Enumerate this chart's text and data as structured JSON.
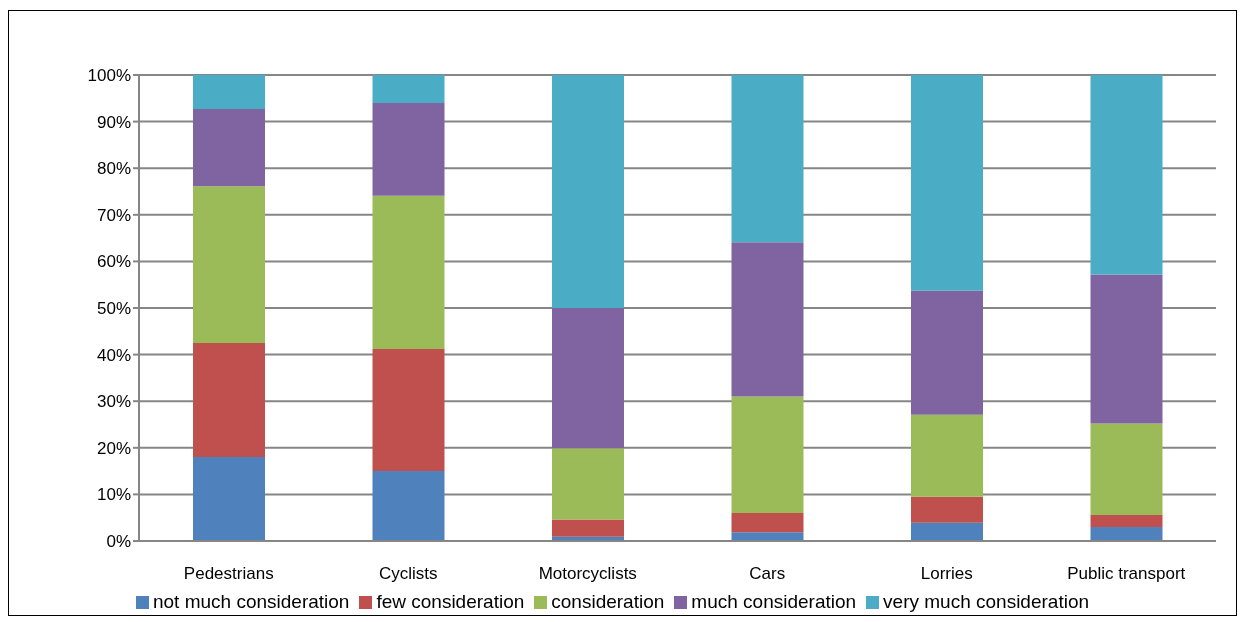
{
  "chart_data": {
    "type": "bar",
    "stacked": true,
    "categories": [
      "Pedestrians",
      "Cyclists",
      "Motorcyclists",
      "Cars",
      "Lorries",
      "Public transport"
    ],
    "series": [
      {
        "name": "not much consideration",
        "color": "#4f81bd",
        "values": [
          18,
          15,
          0.9,
          1.9,
          3.9,
          3.0
        ]
      },
      {
        "name": "few consideration",
        "color": "#c0504d",
        "values": [
          24.5,
          26.2,
          3.7,
          4.1,
          5.6,
          2.6
        ]
      },
      {
        "name": "consideration",
        "color": "#9bbb59",
        "values": [
          33.6,
          32.9,
          15.3,
          25,
          17.6,
          19.6
        ]
      },
      {
        "name": "much consideration",
        "color": "#8064a2",
        "values": [
          16.6,
          19.9,
          30.1,
          33.1,
          26.6,
          32
        ]
      },
      {
        "name": "very much consideration",
        "color": "#4bacc6",
        "values": [
          7.3,
          6.0,
          50,
          35.9,
          46.3,
          42.8
        ]
      }
    ],
    "ylim": [
      0,
      100
    ],
    "yticks": [
      {
        "value": 0,
        "label": "0%"
      },
      {
        "value": 10,
        "label": "10%"
      },
      {
        "value": 20,
        "label": "20%"
      },
      {
        "value": 30,
        "label": "30%"
      },
      {
        "value": 40,
        "label": "40%"
      },
      {
        "value": 50,
        "label": "50%"
      },
      {
        "value": 60,
        "label": "60%"
      },
      {
        "value": 70,
        "label": "70%"
      },
      {
        "value": 80,
        "label": "80%"
      },
      {
        "value": 90,
        "label": "90%"
      },
      {
        "value": 100,
        "label": "100%"
      }
    ],
    "grid": "y",
    "legend": "bottom"
  }
}
